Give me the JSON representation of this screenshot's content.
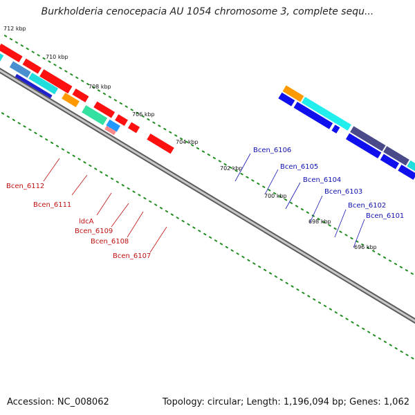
{
  "title": "Burkholderia cenocepacia AU 1054 chromosome 3, complete sequ...",
  "footer": {
    "accession": "Accession: NC_008062",
    "summary": "Topology: circular; Length: 1,196,094 bp; Genes: 1,062"
  },
  "scale_labels": [
    "712 kbp",
    "710 kbp",
    "708 kbp",
    "706 kbp",
    "704 kbp",
    "702 kbp",
    "700 kbp",
    "698 kbp",
    "696 kbp"
  ],
  "gene_labels_top": [
    "Bcen_6106",
    "Bcen_6105",
    "Bcen_6104",
    "Bcen_6103",
    "Bcen_6102",
    "Bcen_6101"
  ],
  "gene_labels_bottom": [
    "Bcen_6112",
    "Bcen_6111",
    "ldcA",
    "Bcen_6109",
    "Bcen_6108",
    "Bcen_6107"
  ],
  "colors": {
    "forward_strand": "#ff0000",
    "reverse_strand": "#0000ee",
    "backbone": "#888888",
    "ticks": "#1e8c1e",
    "label_top": "#1010b0",
    "label_bottom": "#c01010"
  }
}
